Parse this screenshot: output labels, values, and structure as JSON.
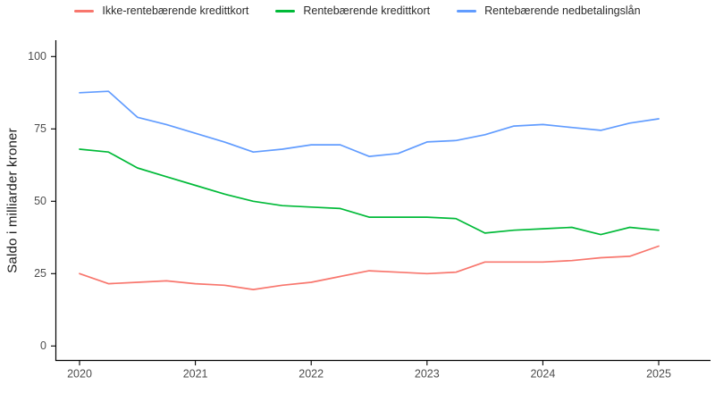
{
  "chart_data": {
    "type": "line",
    "title": "",
    "xlabel": "",
    "ylabel": "Saldo i milliarder kroner",
    "unit": "milliarder kroner",
    "frequency": "quarterly",
    "grid": false,
    "legend_position": "top",
    "x_ticks": [
      "2020",
      "2021",
      "2022",
      "2023",
      "2024",
      "2025"
    ],
    "y_ticks": [
      0,
      25,
      50,
      75,
      100
    ],
    "ylim": [
      -5,
      105.5
    ],
    "xlim": [
      2019.79,
      2025.45
    ],
    "x": [
      2020,
      2020.25,
      2020.5,
      2020.75,
      2021,
      2021.25,
      2021.5,
      2021.75,
      2022,
      2022.25,
      2022.5,
      2022.75,
      2023,
      2023.25,
      2023.5,
      2023.75,
      2024,
      2024.25,
      2024.5,
      2024.75,
      2025
    ],
    "series": [
      {
        "name": "Ikke-rentebærende kredittkort",
        "color": "#F8766D",
        "values": [
          25,
          21.5,
          22,
          22.5,
          21.5,
          21,
          19.5,
          21,
          22,
          24,
          26,
          25.5,
          25,
          25.5,
          29,
          29,
          29,
          29.5,
          30.5,
          31,
          34.5
        ]
      },
      {
        "name": "Rentebærende kredittkort",
        "color": "#00BA38",
        "values": [
          68,
          67,
          61.5,
          58.5,
          55.5,
          52.5,
          50,
          48.5,
          48,
          47.5,
          44.5,
          44.5,
          44.5,
          44,
          39,
          40,
          40.5,
          41,
          38.5,
          41,
          40
        ]
      },
      {
        "name": "Rentebærende nedbetalingslån",
        "color": "#619CFF",
        "values": [
          87.5,
          88,
          79,
          76.5,
          73.5,
          70.5,
          67,
          68,
          69.5,
          69.5,
          65.5,
          66.5,
          70.5,
          71,
          73,
          76,
          76.5,
          75.5,
          74.5,
          77,
          78.5
        ]
      }
    ]
  }
}
